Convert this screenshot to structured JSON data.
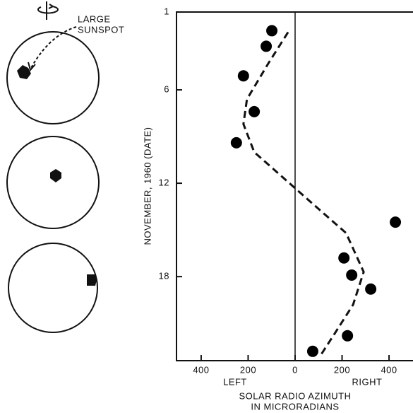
{
  "chart_data": {
    "type": "scatter",
    "y_label": "NOVEMBER, 1960 (DATE)",
    "x_label": [
      "SOLAR RADIO AZIMUTH",
      "IN MICRORADIANS"
    ],
    "x_side_labels": [
      "LEFT",
      "RIGHT"
    ],
    "x": [
      -99,
      -123,
      -220,
      -174,
      -250,
      427,
      208,
      241,
      322,
      223,
      75
    ],
    "values": [
      2.2,
      3.2,
      5.1,
      7.4,
      9.4,
      14.5,
      16.8,
      17.9,
      18.8,
      21.8,
      22.8
    ],
    "color": "#000000",
    "curve": {
      "x": [
        -30,
        -114,
        -205,
        -220,
        -174,
        -54,
        81,
        217,
        292,
        247,
        171,
        111
      ],
      "values": [
        2.3,
        4.3,
        6.6,
        8.2,
        10,
        11.6,
        13.4,
        15.2,
        17.7,
        19.8,
        21.6,
        23.0
      ],
      "style": "dashed"
    },
    "xlim": [
      -505,
      502
    ],
    "xticks": [
      {
        "value": -400,
        "label": "400"
      },
      {
        "value": -200,
        "label": "200"
      },
      0,
      200,
      400
    ],
    "ylim": [
      1,
      23.4
    ],
    "yticks": [
      1,
      6,
      12,
      18
    ],
    "y_inverted": true,
    "zero_line": true
  },
  "diagram": {
    "annotation": [
      "LARGE",
      "SUNSPOT"
    ]
  }
}
